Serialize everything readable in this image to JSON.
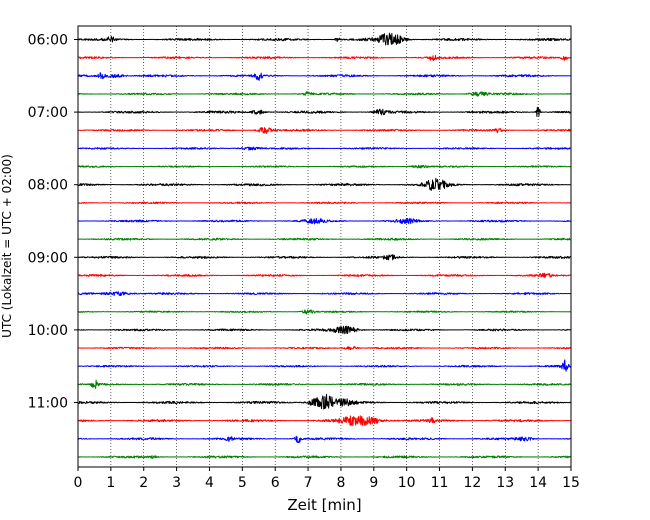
{
  "chart_data": {
    "type": "line",
    "title": "",
    "xlabel": "Zeit  [min]",
    "ylabel": "UTC (Lokalzeit = UTC + 02:00)",
    "xlim": [
      0,
      15
    ],
    "x_ticks": [
      0,
      1,
      2,
      3,
      4,
      5,
      6,
      7,
      8,
      9,
      10,
      11,
      12,
      13,
      14,
      15
    ],
    "grid": "vertical dotted at each minute",
    "y_tick_labels": [
      "06:00",
      "07:00",
      "08:00",
      "09:00",
      "10:00",
      "11:00"
    ],
    "y_tick_trace_index": [
      0,
      4,
      8,
      12,
      16,
      20
    ],
    "trace_colors": [
      "#000000",
      "#ff0000",
      "#0000ff",
      "#008000"
    ],
    "trace_start_times": [
      "06:00",
      "06:15",
      "06:30",
      "06:45",
      "07:00",
      "07:15",
      "07:30",
      "07:45",
      "08:00",
      "08:15",
      "08:30",
      "08:45",
      "09:00",
      "09:15",
      "09:30",
      "09:45",
      "10:00",
      "10:15",
      "10:30",
      "10:45",
      "11:00",
      "11:15",
      "11:30",
      "11:45"
    ],
    "trace_noise_level": [
      0.3,
      0.25,
      0.28,
      0.25,
      0.3,
      0.25,
      0.22,
      0.2,
      0.3,
      0.22,
      0.25,
      0.25,
      0.28,
      0.25,
      0.25,
      0.2,
      0.25,
      0.22,
      0.22,
      0.25,
      0.3,
      0.3,
      0.28,
      0.28
    ],
    "events": [
      {
        "trace": 0,
        "t": 1.0,
        "amp": 0.6,
        "dur": 0.12
      },
      {
        "trace": 0,
        "t": 7.9,
        "amp": 0.5,
        "dur": 0.08
      },
      {
        "trace": 0,
        "t": 9.5,
        "amp": 1.5,
        "dur": 0.4
      },
      {
        "trace": 1,
        "t": 10.8,
        "amp": 0.8,
        "dur": 0.1
      },
      {
        "trace": 1,
        "t": 14.8,
        "amp": 0.6,
        "dur": 0.1
      },
      {
        "trace": 2,
        "t": 0.7,
        "amp": 0.7,
        "dur": 0.1
      },
      {
        "trace": 2,
        "t": 1.1,
        "amp": 0.5,
        "dur": 0.3
      },
      {
        "trace": 2,
        "t": 5.5,
        "amp": 0.9,
        "dur": 0.1
      },
      {
        "trace": 3,
        "t": 7.0,
        "amp": 0.6,
        "dur": 0.1
      },
      {
        "trace": 3,
        "t": 12.2,
        "amp": 0.5,
        "dur": 0.3
      },
      {
        "trace": 4,
        "t": 5.5,
        "amp": 0.6,
        "dur": 0.2
      },
      {
        "trace": 4,
        "t": 9.2,
        "amp": 0.6,
        "dur": 0.2
      },
      {
        "trace": 4,
        "t": 14.0,
        "amp": 1.6,
        "dur": 0.06
      },
      {
        "trace": 5,
        "t": 5.7,
        "amp": 0.8,
        "dur": 0.25
      },
      {
        "trace": 5,
        "t": 12.8,
        "amp": 0.6,
        "dur": 0.1
      },
      {
        "trace": 6,
        "t": 5.2,
        "amp": 0.4,
        "dur": 0.3
      },
      {
        "trace": 7,
        "t": 10.4,
        "amp": 0.3,
        "dur": 0.3
      },
      {
        "trace": 8,
        "t": 10.9,
        "amp": 1.4,
        "dur": 0.35
      },
      {
        "trace": 10,
        "t": 7.2,
        "amp": 0.5,
        "dur": 0.3
      },
      {
        "trace": 10,
        "t": 10.0,
        "amp": 0.5,
        "dur": 0.3
      },
      {
        "trace": 12,
        "t": 9.5,
        "amp": 0.5,
        "dur": 0.2
      },
      {
        "trace": 13,
        "t": 14.2,
        "amp": 0.4,
        "dur": 0.2
      },
      {
        "trace": 14,
        "t": 1.2,
        "amp": 0.5,
        "dur": 0.4
      },
      {
        "trace": 15,
        "t": 7.0,
        "amp": 0.5,
        "dur": 0.2
      },
      {
        "trace": 16,
        "t": 8.1,
        "amp": 0.9,
        "dur": 0.4
      },
      {
        "trace": 17,
        "t": 8.3,
        "amp": 0.5,
        "dur": 0.2
      },
      {
        "trace": 18,
        "t": 14.8,
        "amp": 1.4,
        "dur": 0.1
      },
      {
        "trace": 19,
        "t": 0.5,
        "amp": 1.2,
        "dur": 0.08
      },
      {
        "trace": 20,
        "t": 7.3,
        "amp": 1.1,
        "dur": 0.3
      },
      {
        "trace": 20,
        "t": 7.6,
        "amp": 1.4,
        "dur": 0.2
      },
      {
        "trace": 20,
        "t": 8.1,
        "amp": 0.8,
        "dur": 0.3
      },
      {
        "trace": 21,
        "t": 8.6,
        "amp": 1.2,
        "dur": 0.6
      },
      {
        "trace": 21,
        "t": 10.8,
        "amp": 0.6,
        "dur": 0.1
      },
      {
        "trace": 22,
        "t": 6.7,
        "amp": 0.9,
        "dur": 0.1
      },
      {
        "trace": 22,
        "t": 4.6,
        "amp": 0.5,
        "dur": 0.1
      },
      {
        "trace": 22,
        "t": 13.6,
        "amp": 0.5,
        "dur": 0.2
      },
      {
        "trace": 23,
        "t": 2.3,
        "amp": 0.4,
        "dur": 0.1
      }
    ]
  }
}
